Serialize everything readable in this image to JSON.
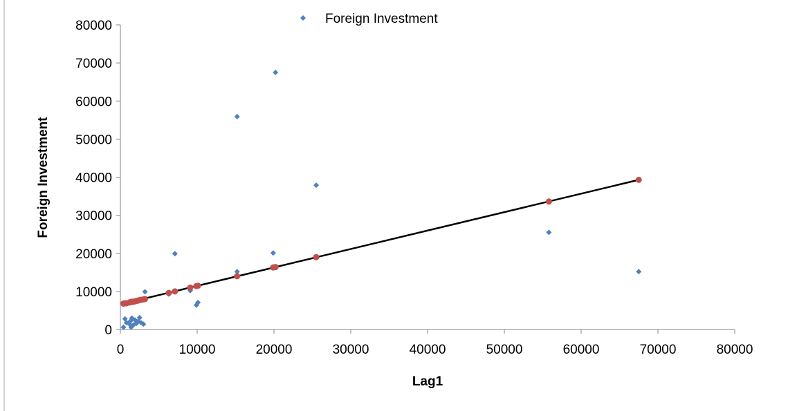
{
  "chart_data": {
    "type": "scatter",
    "xlabel": "Lag1",
    "ylabel": "Foreign Investment",
    "xlim": [
      0,
      80000
    ],
    "ylim": [
      0,
      80000
    ],
    "x_ticks": [
      0,
      10000,
      20000,
      30000,
      40000,
      50000,
      60000,
      70000,
      80000
    ],
    "y_ticks": [
      0,
      10000,
      20000,
      30000,
      40000,
      50000,
      60000,
      70000,
      80000
    ],
    "legend": {
      "placement": "top",
      "entries": [
        "Foreign Investment"
      ]
    },
    "grid": false,
    "colors": {
      "observed": "#4f81bd",
      "predicted": "#c0504d",
      "trendline": "#000000"
    },
    "series": [
      {
        "name": "Foreign Investment",
        "marker": "diamond",
        "color": "#4f81bd",
        "points": [
          [
            400,
            600
          ],
          [
            600,
            2800
          ],
          [
            800,
            1800
          ],
          [
            1200,
            1400
          ],
          [
            1300,
            2200
          ],
          [
            1400,
            600
          ],
          [
            1500,
            3000
          ],
          [
            1700,
            1200
          ],
          [
            1900,
            2500
          ],
          [
            2100,
            1600
          ],
          [
            2300,
            2100
          ],
          [
            2500,
            3100
          ],
          [
            2700,
            1800
          ],
          [
            3000,
            1400
          ],
          [
            3200,
            9900
          ],
          [
            6300,
            9300
          ],
          [
            7100,
            19900
          ],
          [
            9100,
            10200
          ],
          [
            9900,
            6400
          ],
          [
            10100,
            7100
          ],
          [
            15200,
            55900
          ],
          [
            15200,
            15200
          ],
          [
            19900,
            20100
          ],
          [
            20200,
            67500
          ],
          [
            25500,
            37900
          ],
          [
            55800,
            25500
          ],
          [
            67500,
            15200
          ]
        ]
      },
      {
        "marker": "circle",
        "color": "#c0504d",
        "points": [
          [
            400,
            6800
          ],
          [
            600,
            6900
          ],
          [
            800,
            6900
          ],
          [
            1200,
            7100
          ],
          [
            1300,
            7200
          ],
          [
            1400,
            7200
          ],
          [
            1500,
            7300
          ],
          [
            1700,
            7300
          ],
          [
            1900,
            7400
          ],
          [
            2100,
            7500
          ],
          [
            2300,
            7600
          ],
          [
            2500,
            7700
          ],
          [
            2700,
            7800
          ],
          [
            3000,
            7900
          ],
          [
            3200,
            8000
          ],
          [
            6300,
            9600
          ],
          [
            7100,
            10000
          ],
          [
            9100,
            11000
          ],
          [
            9900,
            11400
          ],
          [
            10100,
            11500
          ],
          [
            15200,
            14000
          ],
          [
            19900,
            16300
          ],
          [
            20200,
            16400
          ],
          [
            25500,
            19000
          ],
          [
            55800,
            33600
          ],
          [
            67500,
            39300
          ]
        ]
      }
    ],
    "trendline": {
      "x": [
        400,
        67500
      ],
      "y": [
        6800,
        39300
      ]
    }
  }
}
